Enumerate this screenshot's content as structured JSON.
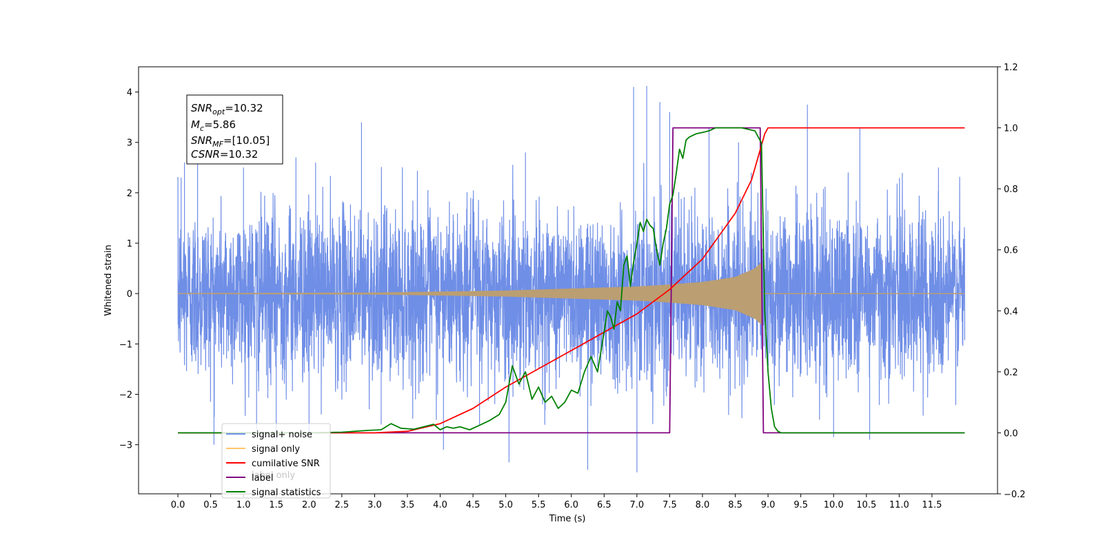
{
  "chart_data": {
    "type": "line",
    "title": "",
    "xlabel": "Time (s)",
    "ylabel": "Whitened strain",
    "xlim": [
      -0.6,
      12.5
    ],
    "ylim": [
      -3.975,
      4.5
    ],
    "y2lim": [
      -0.2,
      1.2
    ],
    "x_ticks": [
      0.0,
      0.5,
      1.0,
      1.5,
      2.0,
      2.5,
      3.0,
      3.5,
      4.0,
      4.5,
      5.0,
      5.5,
      6.0,
      6.5,
      7.0,
      7.5,
      8.0,
      8.5,
      9.0,
      9.5,
      10.0,
      10.5,
      11.0,
      11.5
    ],
    "x_tick_labels": [
      "0.0",
      "0.5",
      "1.0",
      "1.5",
      "2.0",
      "2.5",
      "3.0",
      "3.5",
      "4.0",
      "4.5",
      "5.0",
      "5.5",
      "6.0",
      "6.5",
      "7.0",
      "7.5",
      "8.0",
      "8.5",
      "9.0",
      "9.5",
      "10.0",
      "10.5",
      "11.0",
      "11.5"
    ],
    "y_ticks": [
      -3,
      -2,
      -1,
      0,
      1,
      2,
      3,
      4
    ],
    "y_tick_labels": [
      "−3",
      "−2",
      "−1",
      "0",
      "1",
      "2",
      "3",
      "4"
    ],
    "y2_ticks": [
      -0.2,
      0.0,
      0.2,
      0.4,
      0.6,
      0.8,
      1.0,
      1.2
    ],
    "y2_tick_labels": [
      "−0.2",
      "0.0",
      "0.2",
      "0.4",
      "0.6",
      "0.8",
      "1.0",
      "1.2"
    ],
    "grid": false,
    "legend_position": "lower-left",
    "annotation": {
      "snr_opt": "10.32",
      "mc": "5.86",
      "snr_mf": "[10.05]",
      "csnr": "10.32"
    },
    "series": [
      {
        "name": "signal+ noise",
        "axis": "left",
        "color": "#6f8ee6",
        "x_range": [
          0.0,
          12.0
        ],
        "typical_band": [
          -1.7,
          1.8
        ],
        "peaks": [
          [
            0.05,
            2.3
          ],
          [
            0.1,
            2.6
          ],
          [
            0.3,
            2.7
          ],
          [
            0.55,
            -3.0
          ],
          [
            1.0,
            2.5
          ],
          [
            1.2,
            -2.7
          ],
          [
            1.5,
            -2.9
          ],
          [
            1.8,
            2.7
          ],
          [
            2.0,
            -2.8
          ],
          [
            2.1,
            2.6
          ],
          [
            2.8,
            3.4
          ],
          [
            3.1,
            -2.6
          ],
          [
            4.05,
            -3.1
          ],
          [
            4.6,
            -2.6
          ],
          [
            5.05,
            -3.35
          ],
          [
            5.3,
            2.8
          ],
          [
            6.25,
            -3.5
          ],
          [
            6.95,
            4.1
          ],
          [
            7.0,
            -3.55
          ],
          [
            7.15,
            4.12
          ],
          [
            7.35,
            3.8
          ],
          [
            7.5,
            3.6
          ],
          [
            8.1,
            3.3
          ],
          [
            8.55,
            3.0
          ],
          [
            9.6,
            3.75
          ],
          [
            10.0,
            -2.85
          ],
          [
            10.4,
            3.3
          ],
          [
            10.55,
            -2.9
          ],
          [
            11.6,
            2.5
          ]
        ]
      },
      {
        "name": "signal only",
        "axis": "left",
        "color": "#ffc56b",
        "fill_color": "#bb9e72",
        "x_range": [
          0.0,
          12.0
        ],
        "chirp_end": 8.9,
        "envelope": [
          [
            0.0,
            0.01
          ],
          [
            3.0,
            0.02
          ],
          [
            4.0,
            0.04
          ],
          [
            5.0,
            0.06
          ],
          [
            6.0,
            0.1
          ],
          [
            7.0,
            0.14
          ],
          [
            7.5,
            0.18
          ],
          [
            8.0,
            0.23
          ],
          [
            8.5,
            0.33
          ],
          [
            8.8,
            0.5
          ],
          [
            8.9,
            0.62
          ]
        ]
      },
      {
        "name": "cumilative SNR",
        "axis": "right",
        "color": "#ff0000",
        "x": [
          0.0,
          3.0,
          3.5,
          4.0,
          4.5,
          5.0,
          5.5,
          6.0,
          6.5,
          7.0,
          7.5,
          8.0,
          8.5,
          8.75,
          8.95,
          9.0,
          12.0
        ],
        "y": [
          0.0,
          0.0,
          0.005,
          0.03,
          0.08,
          0.15,
          0.21,
          0.27,
          0.33,
          0.39,
          0.47,
          0.57,
          0.72,
          0.83,
          0.98,
          1.0,
          1.0
        ]
      },
      {
        "name": "label",
        "axis": "right",
        "color": "#800080",
        "x": [
          0.0,
          7.5,
          7.55,
          8.88,
          8.93,
          12.0
        ],
        "y": [
          0.0,
          0.0,
          1.0,
          1.0,
          0.0,
          0.0
        ]
      },
      {
        "name": "signal statistics",
        "axis": "right",
        "color": "#008000",
        "x": [
          0.0,
          0.2,
          0.5,
          1.0,
          1.5,
          2.0,
          2.5,
          2.7,
          2.9,
          3.1,
          3.25,
          3.4,
          3.6,
          3.75,
          3.9,
          4.0,
          4.1,
          4.2,
          4.3,
          4.45,
          4.6,
          4.75,
          4.9,
          5.0,
          5.1,
          5.2,
          5.3,
          5.4,
          5.5,
          5.6,
          5.7,
          5.8,
          5.9,
          6.0,
          6.1,
          6.2,
          6.3,
          6.4,
          6.5,
          6.55,
          6.6,
          6.65,
          6.7,
          6.75,
          6.8,
          6.85,
          6.9,
          6.95,
          7.0,
          7.05,
          7.1,
          7.15,
          7.2,
          7.25,
          7.3,
          7.35,
          7.4,
          7.45,
          7.5,
          7.55,
          7.6,
          7.65,
          7.7,
          7.75,
          7.8,
          7.9,
          8.0,
          8.1,
          8.2,
          8.4,
          8.6,
          8.8,
          8.9,
          8.95,
          9.0,
          9.05,
          9.1,
          9.15,
          9.2,
          9.3,
          12.0
        ],
        "y": [
          0.0,
          0.0,
          0.0,
          0.0,
          0.0,
          0.0,
          0.002,
          0.005,
          0.008,
          0.01,
          0.03,
          0.015,
          0.012,
          0.02,
          0.028,
          0.01,
          0.02,
          0.015,
          0.02,
          0.01,
          0.025,
          0.04,
          0.06,
          0.1,
          0.22,
          0.16,
          0.2,
          0.11,
          0.15,
          0.1,
          0.12,
          0.08,
          0.1,
          0.14,
          0.13,
          0.2,
          0.25,
          0.2,
          0.33,
          0.4,
          0.38,
          0.34,
          0.43,
          0.4,
          0.55,
          0.58,
          0.48,
          0.56,
          0.62,
          0.69,
          0.66,
          0.7,
          0.68,
          0.67,
          0.6,
          0.55,
          0.62,
          0.67,
          0.75,
          0.78,
          0.85,
          0.93,
          0.9,
          0.96,
          0.97,
          0.98,
          0.985,
          0.99,
          1.0,
          1.0,
          1.0,
          0.99,
          0.95,
          0.4,
          0.2,
          0.08,
          0.02,
          0.005,
          0.0,
          0.0,
          0.0
        ]
      }
    ]
  },
  "legend": {
    "items": [
      {
        "label": "signal+ noise",
        "color": "#6f8ee6"
      },
      {
        "label": "signal only",
        "color": "#ffc56b"
      },
      {
        "label": "cumilative SNR",
        "color": "#ff0000"
      },
      {
        "label": "label",
        "color": "#800080"
      },
      {
        "label": "signal statistics",
        "color": "#008000"
      }
    ],
    "hidden_text": "label only"
  }
}
